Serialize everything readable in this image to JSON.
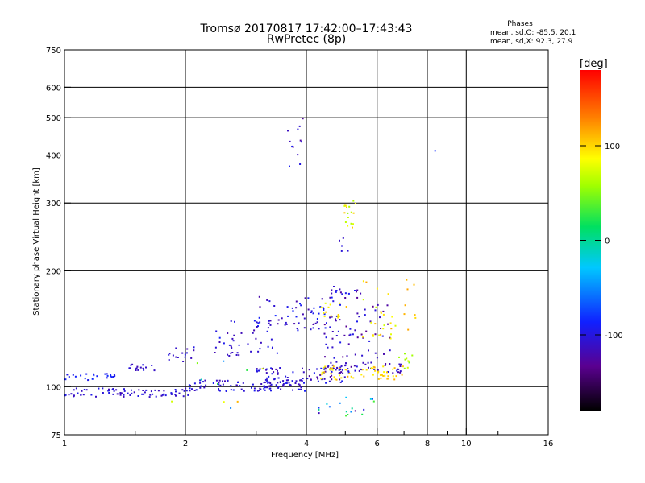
{
  "chart_data": {
    "type": "scatter",
    "title": "Tromsø 20170817 17:42:00–17:43:43",
    "subtitle": "RwPretec (8p)",
    "xlabel": "Frequency [MHz]",
    "ylabel": "Stationary phase Virtual Height [km]",
    "x_scale": "log2",
    "y_scale": "log",
    "xlim": [
      1,
      16
    ],
    "ylim": [
      75,
      750
    ],
    "x_ticks": [
      {
        "v": 1,
        "label": "1"
      },
      {
        "v": 2,
        "label": "2"
      },
      {
        "v": 4,
        "label": "4"
      },
      {
        "v": 6,
        "label": "6"
      },
      {
        "v": 8,
        "label": "8"
      },
      {
        "v": 10,
        "label": "10"
      },
      {
        "v": 16,
        "label": "16"
      }
    ],
    "x_minor_ticks": [
      1.5,
      3,
      5,
      7,
      9,
      12
    ],
    "x_grid": [
      2,
      4,
      6,
      8,
      10
    ],
    "y_ticks": [
      {
        "v": 75,
        "label": "75"
      },
      {
        "v": 100,
        "label": "100"
      },
      {
        "v": 200,
        "label": "200"
      },
      {
        "v": 300,
        "label": "300"
      },
      {
        "v": 400,
        "label": "400"
      },
      {
        "v": 500,
        "label": "500"
      },
      {
        "v": 600,
        "label": "600"
      },
      {
        "v": 750,
        "label": "750"
      }
    ],
    "y_grid": [
      100,
      200,
      300,
      400,
      500,
      600
    ],
    "phases": {
      "header": "Phases",
      "line_o": "mean, sd,O: -85.5, 20.1",
      "line_x": "mean, sd,X:  92.3, 27.9"
    },
    "colorbar": {
      "label": "[deg]",
      "range": [
        -180,
        180
      ],
      "ticks": [
        {
          "v": 100,
          "label": "100"
        },
        {
          "v": 0,
          "label": "0"
        },
        {
          "v": -100,
          "label": "-100"
        }
      ]
    },
    "clusters": [
      {
        "x0": 1.0,
        "x1": 2.05,
        "y0": 94,
        "y1": 99,
        "p0": -118,
        "p1": -95,
        "n": 75
      },
      {
        "x0": 1.0,
        "x1": 1.35,
        "y0": 104,
        "y1": 108,
        "p0": -100,
        "p1": -82,
        "n": 25
      },
      {
        "x0": 1.45,
        "x1": 1.7,
        "y0": 110,
        "y1": 115,
        "p0": -118,
        "p1": -95,
        "n": 16
      },
      {
        "x0": 1.8,
        "x1": 2.1,
        "y0": 115,
        "y1": 127,
        "p0": -118,
        "p1": -95,
        "n": 16
      },
      {
        "x0": 2.0,
        "x1": 4.0,
        "y0": 97,
        "y1": 104,
        "p0": -120,
        "p1": -88,
        "n": 95
      },
      {
        "x0": 3.0,
        "x1": 5.0,
        "y0": 102,
        "y1": 112,
        "p0": -125,
        "p1": -90,
        "n": 80
      },
      {
        "x0": 4.5,
        "x1": 6.9,
        "y0": 108,
        "y1": 116,
        "p0": -130,
        "p1": -90,
        "n": 50
      },
      {
        "x0": 4.3,
        "x1": 7.0,
        "y0": 104,
        "y1": 113,
        "p0": 80,
        "p1": 115,
        "n": 55
      },
      {
        "x0": 2.3,
        "x1": 3.4,
        "y0": 120,
        "y1": 150,
        "p0": -120,
        "p1": -85,
        "n": 40
      },
      {
        "x0": 3.0,
        "x1": 4.8,
        "y0": 140,
        "y1": 172,
        "p0": -125,
        "p1": -85,
        "n": 65
      },
      {
        "x0": 4.5,
        "x1": 5.5,
        "y0": 170,
        "y1": 182,
        "p0": -130,
        "p1": -85,
        "n": 18
      },
      {
        "x0": 4.2,
        "x1": 6.5,
        "y0": 118,
        "y1": 165,
        "p0": -135,
        "p1": -90,
        "n": 60
      },
      {
        "x0": 5.5,
        "x1": 7.5,
        "y0": 130,
        "y1": 190,
        "p0": 70,
        "p1": 120,
        "n": 32
      },
      {
        "x0": 4.3,
        "x1": 5.2,
        "y0": 150,
        "y1": 165,
        "p0": 70,
        "p1": 110,
        "n": 14
      },
      {
        "x0": 4.2,
        "x1": 6.0,
        "y0": 84,
        "y1": 95,
        "p0": -130,
        "p1": 60,
        "n": 18
      },
      {
        "x0": 4.9,
        "x1": 5.3,
        "y0": 255,
        "y1": 305,
        "p0": 50,
        "p1": 110,
        "n": 18
      },
      {
        "x0": 4.8,
        "x1": 5.1,
        "y0": 220,
        "y1": 250,
        "p0": -130,
        "p1": -100,
        "n": 5
      },
      {
        "x0": 3.55,
        "x1": 3.95,
        "y0": 370,
        "y1": 530,
        "p0": -130,
        "p1": -90,
        "n": 13
      },
      {
        "x0": 8.3,
        "x1": 8.4,
        "y0": 408,
        "y1": 412,
        "p0": -90,
        "p1": -80,
        "n": 1
      },
      {
        "x0": 6.8,
        "x1": 7.4,
        "y0": 110,
        "y1": 125,
        "p0": 40,
        "p1": 80,
        "n": 10
      },
      {
        "x0": 1.8,
        "x1": 3.5,
        "y0": 82,
        "y1": 130,
        "p0": -90,
        "p1": 120,
        "n": 10
      }
    ]
  }
}
